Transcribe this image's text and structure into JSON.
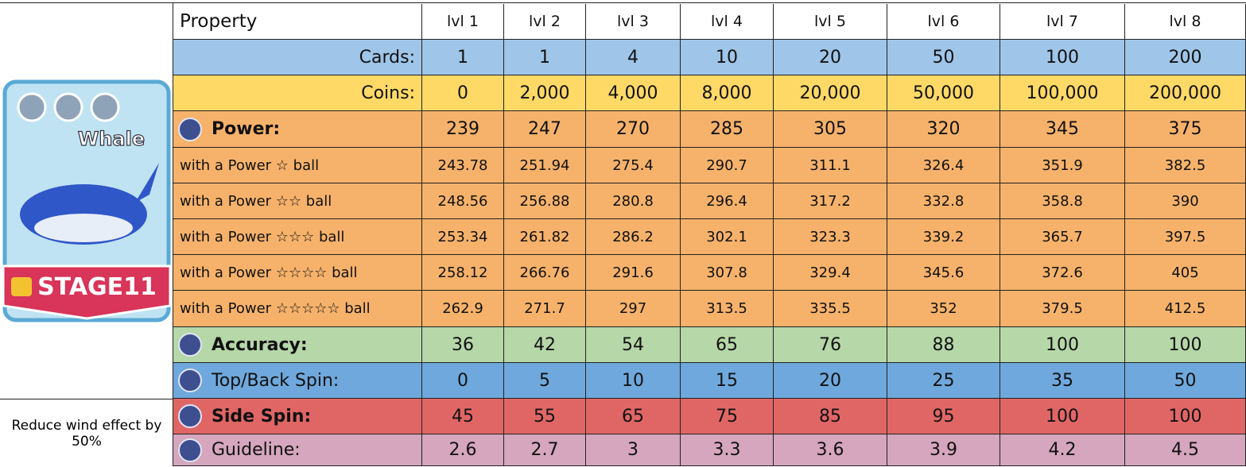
{
  "card": {
    "name": "Whale",
    "stage": "STAGE11"
  },
  "note": "Reduce wind effect by 50%",
  "table": {
    "header": [
      "Property",
      "lvl 1",
      "lvl 2",
      "lvl 3",
      "lvl 4",
      "lvl 5",
      "lvl 6",
      "lvl 7",
      "lvl 8"
    ],
    "rows": [
      [
        "Cards:",
        "1",
        "1",
        "4",
        "10",
        "20",
        "50",
        "100",
        "200"
      ],
      [
        "Coins:",
        "0",
        "2,000",
        "4,000",
        "8,000",
        "20,000",
        "50,000",
        "100,000",
        "200,000"
      ],
      [
        "Power:",
        "239",
        "247",
        "270",
        "285",
        "305",
        "320",
        "345",
        "375"
      ],
      [
        "with a Power ☆ ball",
        "243.78",
        "251.94",
        "275.4",
        "290.7",
        "311.1",
        "326.4",
        "351.9",
        "382.5"
      ],
      [
        "with a Power ☆☆ ball",
        "248.56",
        "256.88",
        "280.8",
        "296.4",
        "317.2",
        "332.8",
        "358.8",
        "390"
      ],
      [
        "with a Power ☆☆☆ ball",
        "253.34",
        "261.82",
        "286.2",
        "302.1",
        "323.3",
        "339.2",
        "365.7",
        "397.5"
      ],
      [
        "with a Power ☆☆☆☆ ball",
        "258.12",
        "266.76",
        "291.6",
        "307.8",
        "329.4",
        "345.6",
        "372.6",
        "405"
      ],
      [
        "with a Power ☆☆☆☆☆ ball",
        "262.9",
        "271.7",
        "297",
        "313.5",
        "335.5",
        "352",
        "379.5",
        "412.5"
      ],
      [
        "Accuracy:",
        "36",
        "42",
        "54",
        "65",
        "76",
        "88",
        "100",
        "100"
      ],
      [
        "Top/Back Spin:",
        "0",
        "5",
        "10",
        "15",
        "20",
        "25",
        "35",
        "50"
      ],
      [
        "Side Spin:",
        "45",
        "55",
        "65",
        "75",
        "85",
        "95",
        "100",
        "100"
      ],
      [
        "Guideline:",
        "2.6",
        "2.7",
        "3",
        "3.3",
        "3.6",
        "3.9",
        "4.2",
        "4.5"
      ]
    ]
  }
}
